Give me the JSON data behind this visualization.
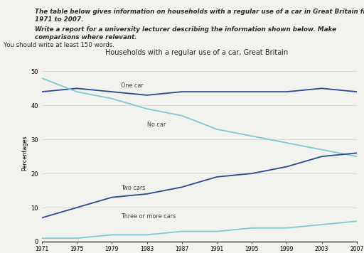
{
  "title": "Households with a regular use of a car, Great Britain",
  "ylabel": "Percentages",
  "years": [
    1971,
    1975,
    1979,
    1983,
    1987,
    1991,
    1995,
    1999,
    2003,
    2007
  ],
  "one_car": [
    44,
    45,
    44,
    43,
    44,
    44,
    44,
    44,
    45,
    44
  ],
  "no_car": [
    48,
    44,
    42,
    39,
    37,
    33,
    31,
    29,
    27,
    25
  ],
  "two_cars": [
    7,
    10,
    13,
    14,
    16,
    19,
    20,
    22,
    25,
    26
  ],
  "three_or_more": [
    1,
    1,
    2,
    2,
    3,
    3,
    4,
    4,
    5,
    6
  ],
  "color_one_car": "#2c4a8c",
  "color_no_car": "#7ecad4",
  "color_two_cars": "#2c4a8c",
  "color_three": "#7ecad4",
  "header_line1": "The table below gives information on households with a regular use of a car in Great Britain from",
  "header_line2": "1971 to 2007.",
  "header_line3": "Write a report for a university lecturer describing the information shown below. Make",
  "header_line4": "comparisons where relevant.",
  "footer_text": "You should write at least 150 words.",
  "ylim": [
    0,
    52
  ],
  "yticks": [
    0,
    10,
    20,
    30,
    40,
    50
  ],
  "background_color": "#f2f2ee"
}
